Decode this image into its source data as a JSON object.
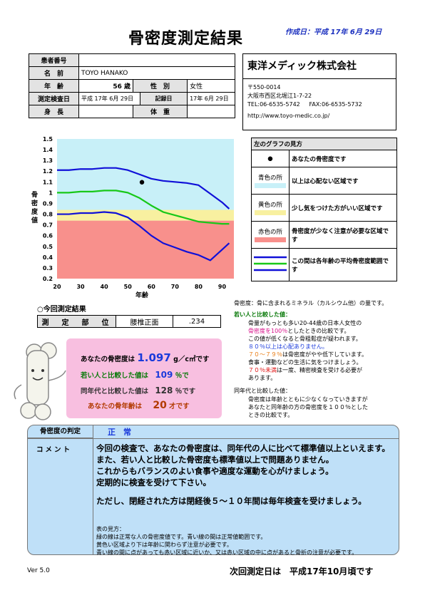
{
  "header": {
    "title": "骨密度測定結果",
    "created": "作成日：平成 17年 6月 29日"
  },
  "patient": {
    "id_label": "患者番号",
    "id_value": "",
    "name_label": "名　前",
    "name_value": "TOYO HANAKO",
    "age_label": "年　齢",
    "age_value": "56 歳",
    "sex_label": "性　別",
    "sex_value": "女性",
    "exam_label": "測定検査日",
    "exam_value": "平成 17年 6月 29日",
    "record_label": "記録日",
    "record_value": "17年 6月 29日",
    "height_label": "身　長",
    "height_value": "",
    "weight_label": "体　重",
    "weight_value": ""
  },
  "company": {
    "name": "東洋メディック株式会社",
    "zip": "〒550-0014",
    "address": "大阪市西区北堀江1-7-22",
    "tel": "TEL:06-6535-5742",
    "fax": "FAX:06-6535-5732",
    "url": "http://www.toyo-medic.co.jp/"
  },
  "legend": {
    "title": "左のグラフの見方",
    "dot_symbol": "●",
    "dot_text": "あなたの骨密度です",
    "blue_key": "青色の所",
    "blue_text": "以上は心配ない区域です",
    "yellow_key": "黄色の所",
    "yellow_text": "少し気をつけた方がいい区域です",
    "red_key": "赤色の所",
    "red_text": "骨密度が少なく注意が必要な区域です",
    "lines_text": "この間は各年齢の平均骨密度範囲です",
    "colors": {
      "blue": "#c8f0f8",
      "yellow": "#f8f0a0",
      "red": "#f8908c",
      "line_blue": "#1010d8",
      "line_green": "#18c818"
    }
  },
  "chart_data": {
    "type": "line",
    "ylabel": "骨密度値",
    "xlabel": "年齢",
    "x_ticks": [
      20,
      30,
      40,
      50,
      60,
      70,
      80,
      90
    ],
    "y_ticks": [
      1.5,
      1.4,
      1.3,
      1.2,
      1.1,
      1,
      0.9,
      0.8,
      0.7,
      0.6,
      0.5,
      0.4,
      0.3,
      0.2
    ],
    "xlim": [
      20,
      95
    ],
    "ylim": [
      0.2,
      1.5
    ],
    "zones": [
      {
        "name": "red",
        "from": 0.2,
        "to": 0.74,
        "color": "#f8908c"
      },
      {
        "name": "yellow",
        "from": 0.74,
        "to": 0.84,
        "color": "#f8f0a0"
      },
      {
        "name": "blue",
        "from": 0.84,
        "to": 1.5,
        "color": "#c8f0f8"
      }
    ],
    "series": [
      {
        "key": "upper",
        "color": "#1010d8",
        "x": [
          20,
          25,
          30,
          35,
          40,
          45,
          50,
          55,
          60,
          65,
          70,
          75,
          80,
          85,
          90,
          93
        ],
        "y": [
          1.21,
          1.21,
          1.22,
          1.22,
          1.23,
          1.23,
          1.21,
          1.17,
          1.13,
          1.11,
          1.1,
          1.09,
          1.07,
          0.99,
          0.91,
          0.85
        ]
      },
      {
        "key": "average",
        "color": "#18c818",
        "x": [
          20,
          25,
          30,
          35,
          40,
          45,
          50,
          55,
          60,
          65,
          70,
          75,
          80,
          85,
          90,
          93
        ],
        "y": [
          1.0,
          1.0,
          1.01,
          1.01,
          1.02,
          1.02,
          1.0,
          0.95,
          0.88,
          0.82,
          0.79,
          0.76,
          0.73,
          0.72,
          0.71,
          0.71
        ]
      },
      {
        "key": "lower",
        "color": "#1010d8",
        "x": [
          20,
          25,
          30,
          35,
          40,
          45,
          50,
          55,
          60,
          65,
          70,
          75,
          80,
          85,
          90,
          93
        ],
        "y": [
          0.8,
          0.8,
          0.81,
          0.81,
          0.82,
          0.81,
          0.77,
          0.69,
          0.6,
          0.53,
          0.49,
          0.45,
          0.42,
          0.37,
          0.47,
          0.53
        ]
      }
    ],
    "point": {
      "x": 56,
      "y": 1.097
    }
  },
  "measure": {
    "heading": "○今回測定結果",
    "site_label": "測　定　部　位",
    "site_value": "腰椎正面",
    "site_number": ".234"
  },
  "results": {
    "bmd_label": "あなたの骨密度は",
    "bmd_value": "1.097",
    "bmd_unit": "g／c㎡です",
    "young_label": "若い人と比較した値は",
    "young_value": "109",
    "young_unit": "％で",
    "same_label": "同年代と比較した値は",
    "same_value": "128",
    "same_unit": "％です",
    "bone_age_label": "あなたの骨年齢は",
    "bone_age_value": "20",
    "bone_age_unit": "才です"
  },
  "explain": {
    "line1": "骨密度：骨に含まれるミネラル（カルシウム他）の量です。",
    "young_head": "若い人と比較した値：",
    "young_1": "骨量がもっとも多い20-44歳の日本人女性の",
    "young_2a": "骨密度を100％",
    "young_2b": "としたときの比較です。",
    "young_3": "この値が低くなると骨粗鬆症が疑われます。",
    "young_4": "８０％以上は心配ありません。",
    "young_5a": "７０～７９％",
    "young_5b": "は骨密度がやや低下しています。",
    "young_6": "食事・運動などの生活に気をつけましょう。",
    "young_7a": "７０％未満",
    "young_7b": "は一度、精密検査を受ける必要が",
    "young_8": "あります。",
    "same_head": "同年代と比較した値：",
    "same_1": "骨密度は年齢とともに少なくなっていきますが",
    "same_2": "あなたと同年齢の方の骨密度を１００％とした",
    "same_3": "ときの比較です。"
  },
  "judgement": {
    "label": "骨密度の判定",
    "value": "正　常",
    "comment_label": "コメント",
    "comments": [
      "今回の検査で、あなたの骨密度は、同年代の人に比べて標準値以上といえます。",
      "また、若い人と比較した骨密度も標準値以上で問題ありません。",
      "これからもバランスのよい食事や適度な運動を心がけましょう。",
      "定期的に検査を受けて下さい。",
      "ただし、閉経された方は閉経後５～１０年間は毎年検査を受けましょう。"
    ],
    "notes": [
      "表の見方：",
      "緑の線は正常な人の骨密度値です。青い線の間は正常値範囲です。",
      "黄色い区域より下は年齢に関わらず注意が必要です。",
      "青い線の間に点があっても赤い区域に近いか、又は赤い区域の中に点があると骨折の注意が必要です。"
    ]
  },
  "footer": {
    "version": "Ver 5.0",
    "next": "次回測定日は　平成17年10月頃です"
  }
}
